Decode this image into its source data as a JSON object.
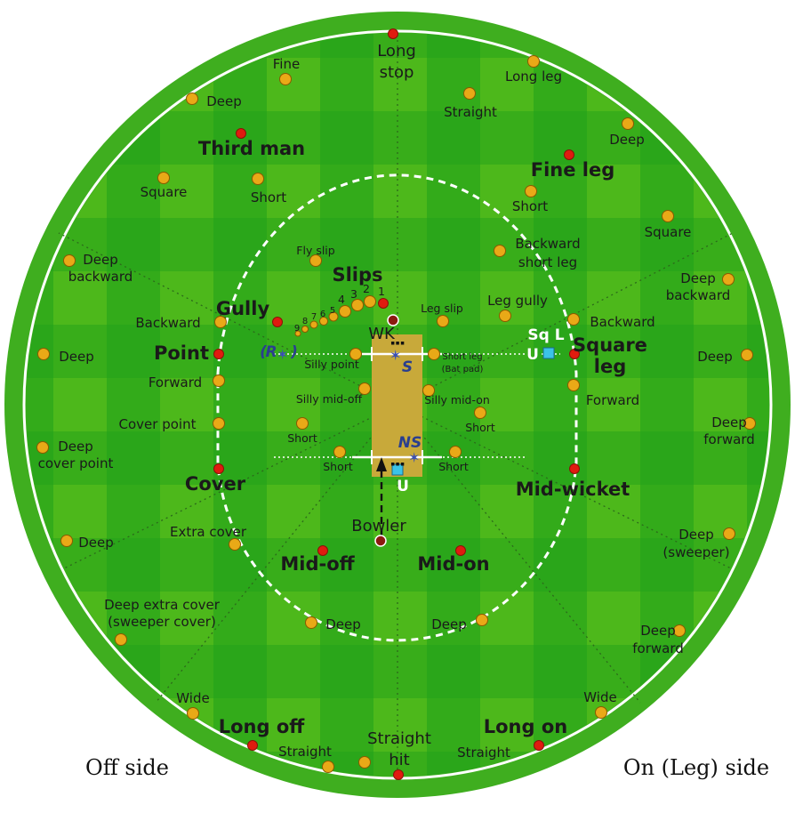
{
  "colors": {
    "grass_dark": "#1fa01a",
    "grass_light": "#62c51c",
    "boundary_ring": "#3fae1f",
    "pitch": "#c8a93a",
    "standard_fielder": "#e01b0f",
    "other_fielder": "#e9a917",
    "fielder_outline": "#8a5a00",
    "umpire": "#3bc3e8",
    "wk_bowler": "#8b1a10"
  },
  "side_labels": {
    "off": "Off side",
    "on": "On (Leg) side"
  },
  "markers": {
    "wk": "WK",
    "bowler": "Bowler",
    "striker": "S",
    "non_striker": "NS",
    "umpire": "U",
    "runner": "R",
    "runner_paren_open": "(",
    "runner_paren_close": ")"
  },
  "square_leg_umpire": {
    "line1": "Sq L",
    "line2": "U"
  },
  "slip_numbers": [
    "1",
    "2",
    "3",
    "4",
    "5",
    "6",
    "7",
    "8",
    "9"
  ],
  "positions": {
    "long_stop": [
      "Long",
      "stop"
    ],
    "fine": "Fine",
    "long_leg": "Long leg",
    "deep_third": "Deep",
    "straight_long_leg": "Straight",
    "deep_fine_leg": "Deep",
    "third_man": "Third man",
    "fine_leg": "Fine leg",
    "square_third": "Square",
    "short_third": "Short",
    "short_fine_leg": "Short",
    "square_fine_leg": "Square",
    "fly_slip": "Fly slip",
    "backward_short_leg": [
      "Backward",
      "short leg"
    ],
    "deep_backward_point": [
      "Deep",
      "backward"
    ],
    "deep_backward_square": [
      "Deep",
      "backward"
    ],
    "slips": "Slips",
    "gully": "Gully",
    "leg_slip": "Leg slip",
    "leg_gully": "Leg gully",
    "backward_point": "Backward",
    "backward_square_leg": "Backward",
    "point": "Point",
    "square_leg": [
      "Square",
      "leg"
    ],
    "deep_point": "Deep",
    "deep_square_leg": "Deep",
    "silly_point": "Silly point",
    "short_leg": [
      "Short leg",
      "(Bat pad)"
    ],
    "forward_point": "Forward",
    "forward_square_leg": "Forward",
    "silly_mid_off": "Silly mid-off",
    "silly_mid_on": "Silly mid-on",
    "cover_point": "Cover point",
    "short_cover": "Short",
    "short_midwicket": "Short",
    "deep_cover_point": [
      "Deep",
      "cover point"
    ],
    "deep_forward_square": [
      "Deep",
      "forward"
    ],
    "short_mid_off": "Short",
    "short_mid_on": "Short",
    "cover": "Cover",
    "mid_wicket": "Mid-wicket",
    "extra_cover": "Extra cover",
    "deep_extra_cover_short": "Deep",
    "deep_midwicket": [
      "Deep",
      "(sweeper)"
    ],
    "mid_off": "Mid-off",
    "mid_on": "Mid-on",
    "deep_extra_cover": [
      "Deep extra cover",
      "(sweeper cover)"
    ],
    "deep_mid_off": "Deep",
    "deep_mid_on": "Deep",
    "deep_forward_midwicket": [
      "Deep",
      "forward"
    ],
    "wide_long_off": "Wide",
    "wide_long_on": "Wide",
    "long_off": "Long off",
    "long_on": "Long on",
    "straight_long_off": "Straight",
    "straight_long_on": "Straight",
    "straight_hit": [
      "Straight",
      "hit"
    ]
  }
}
